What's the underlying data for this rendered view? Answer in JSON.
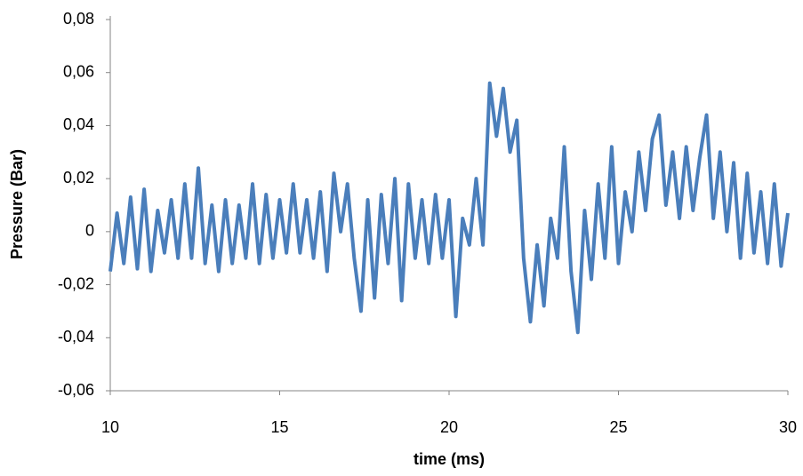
{
  "chart_data": {
    "type": "line",
    "xlabel": "time (ms)",
    "ylabel": "Pressure (Bar)",
    "x": [
      10,
      10.2,
      10.4,
      10.6,
      10.8,
      11,
      11.2,
      11.4,
      11.6,
      11.8,
      12,
      12.2,
      12.4,
      12.6,
      12.8,
      13,
      13.2,
      13.4,
      13.6,
      13.8,
      14,
      14.2,
      14.4,
      14.6,
      14.8,
      15,
      15.2,
      15.4,
      15.6,
      15.8,
      16,
      16.2,
      16.4,
      16.6,
      16.8,
      17,
      17.2,
      17.4,
      17.6,
      17.8,
      18,
      18.2,
      18.4,
      18.6,
      18.8,
      19,
      19.2,
      19.4,
      19.6,
      19.8,
      20,
      20.2,
      20.4,
      20.6,
      20.8,
      21,
      21.2,
      21.4,
      21.6,
      21.8,
      22,
      22.2,
      22.4,
      22.6,
      22.8,
      23,
      23.2,
      23.4,
      23.6,
      23.8,
      24,
      24.2,
      24.4,
      24.6,
      24.8,
      25,
      25.2,
      25.4,
      25.6,
      25.8,
      26,
      26.2,
      26.4,
      26.6,
      26.8,
      27,
      27.2,
      27.4,
      27.6,
      27.8,
      28,
      28.2,
      28.4,
      28.6,
      28.8,
      29,
      29.2,
      29.4,
      29.6,
      29.8,
      30
    ],
    "values": [
      -0.015,
      0.007,
      -0.012,
      0.013,
      -0.014,
      0.016,
      -0.015,
      0.008,
      -0.008,
      0.012,
      -0.01,
      0.018,
      -0.01,
      0.024,
      -0.012,
      0.01,
      -0.015,
      0.012,
      -0.012,
      0.01,
      -0.01,
      0.018,
      -0.012,
      0.014,
      -0.01,
      0.012,
      -0.008,
      0.018,
      -0.008,
      0.012,
      -0.01,
      0.015,
      -0.015,
      0.022,
      0.0,
      0.018,
      -0.01,
      -0.03,
      0.012,
      -0.025,
      0.014,
      -0.012,
      0.02,
      -0.026,
      0.018,
      -0.01,
      0.012,
      -0.012,
      0.014,
      -0.01,
      0.012,
      -0.032,
      0.005,
      -0.005,
      0.02,
      -0.005,
      0.056,
      0.036,
      0.054,
      0.03,
      0.042,
      -0.01,
      -0.034,
      -0.005,
      -0.028,
      0.005,
      -0.01,
      0.032,
      -0.015,
      -0.038,
      0.008,
      -0.018,
      0.018,
      -0.01,
      0.032,
      -0.012,
      0.015,
      0.0,
      0.03,
      0.008,
      0.035,
      0.044,
      0.01,
      0.03,
      0.005,
      0.032,
      0.008,
      0.028,
      0.044,
      0.005,
      0.03,
      0.0,
      0.026,
      -0.01,
      0.022,
      -0.008,
      0.015,
      -0.012,
      0.018,
      -0.013,
      0.007
    ],
    "color": "#4a7ebb",
    "xlim": [
      10,
      30
    ],
    "xticks": [
      10,
      15,
      20,
      25,
      30
    ],
    "ylim": [
      -0.06,
      0.08
    ],
    "yticks": [
      {
        "value": -0.06,
        "label": "-0,06"
      },
      {
        "value": -0.04,
        "label": "-0,04"
      },
      {
        "value": -0.02,
        "label": "-0,02"
      },
      0,
      {
        "value": 0.02,
        "label": "0,02"
      },
      {
        "value": 0.04,
        "label": "0,04"
      },
      {
        "value": 0.06,
        "label": "0,06"
      },
      {
        "value": 0.08,
        "label": "0,08"
      }
    ],
    "grid": false
  }
}
